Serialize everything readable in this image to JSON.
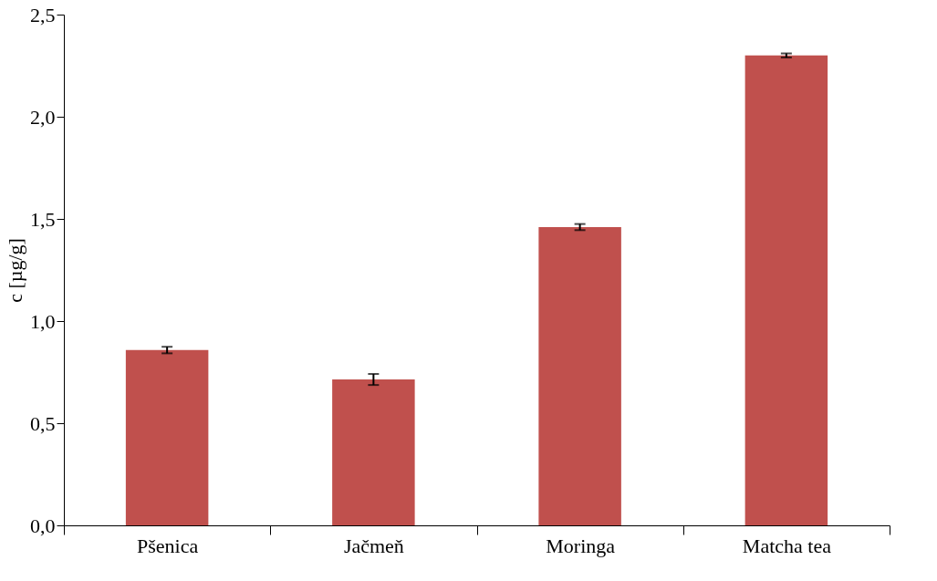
{
  "chart_data": {
    "type": "bar",
    "ylabel": "c [µg/g]",
    "categories": [
      "Pšenica",
      "Jačmeň",
      "Moringa",
      "Matcha tea"
    ],
    "values": [
      0.858,
      0.714,
      1.46,
      2.3
    ],
    "errors": [
      0.016,
      0.027,
      0.015,
      0.01
    ],
    "color": "#c0504d",
    "ylim": [
      0,
      2.5
    ],
    "yticks": [
      {
        "value": 0,
        "label": "0,0"
      },
      {
        "value": 0.5,
        "label": "0,5"
      },
      {
        "value": 1,
        "label": "1,0"
      },
      {
        "value": 1.5,
        "label": "1,5"
      },
      {
        "value": 2,
        "label": "2,0"
      },
      {
        "value": 2.5,
        "label": "2,5"
      }
    ],
    "grid": false
  }
}
